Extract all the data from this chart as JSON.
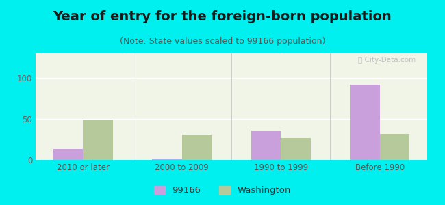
{
  "title": "Year of entry for the foreign-born population",
  "subtitle": "(Note: State values scaled to 99166 population)",
  "categories": [
    "2010 or later",
    "2000 to 2009",
    "1990 to 1999",
    "Before 1990"
  ],
  "values_99166": [
    13,
    2,
    36,
    92
  ],
  "values_washington": [
    49,
    31,
    27,
    32
  ],
  "color_99166": "#c9a0dc",
  "color_washington": "#b5c99a",
  "background_outer": "#00efef",
  "background_inner_top": "#f0f5e8",
  "background_inner_bottom": "#e0edd0",
  "ylim": [
    0,
    130
  ],
  "yticks": [
    0,
    50,
    100
  ],
  "legend_label_1": "99166",
  "legend_label_2": "Washington",
  "bar_width": 0.3,
  "title_fontsize": 14,
  "subtitle_fontsize": 9,
  "tick_fontsize": 8.5,
  "legend_fontsize": 9.5
}
